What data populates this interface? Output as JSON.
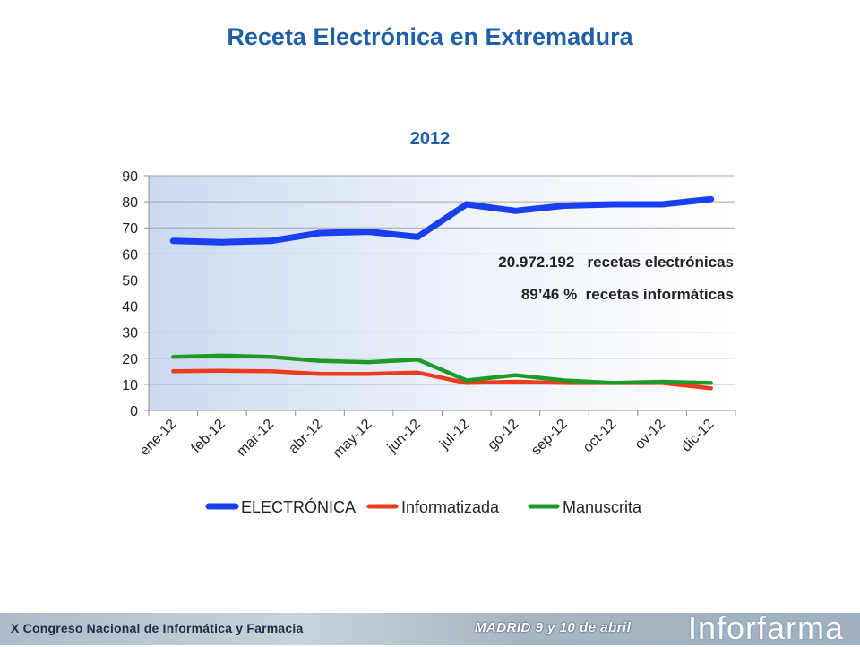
{
  "slide": {
    "title": "Receta Electrónica en Extremadura"
  },
  "annotations": {
    "line1": "20.972.192   recetas electrónicas",
    "line2": "89’46 %  recetas informáticas"
  },
  "footer": {
    "left_text": "X Congreso Nacional de Informática y Farmacia",
    "mid_text": "MADRID 9 y 10 de abril",
    "logo_text": "Inforfarma"
  },
  "chart_data": {
    "type": "line",
    "title": "2012",
    "categories": [
      "ene-12",
      "feb-12",
      "mar-12",
      "abr-12",
      "may-12",
      "jun-12",
      "jul-12",
      "go-12",
      "sep-12",
      "oct-12",
      "ov-12",
      "dic-12"
    ],
    "ylim": [
      0,
      90
    ],
    "yticks": [
      0,
      10,
      20,
      30,
      40,
      50,
      60,
      70,
      80,
      90
    ],
    "grid": true,
    "legend_position": "bottom",
    "series": [
      {
        "name": "ELECTRÓNICA",
        "color": "#1a3ff0",
        "values": [
          65,
          64.5,
          65,
          68,
          68.5,
          66.5,
          79,
          76.5,
          78.5,
          79,
          79,
          81
        ]
      },
      {
        "name": "Informatizada",
        "color": "#ee3b1e",
        "values": [
          15,
          15.2,
          15,
          14,
          14,
          14.5,
          10.5,
          11,
          10.5,
          10.5,
          10.5,
          8.5
        ]
      },
      {
        "name": "Manuscrita",
        "color": "#1e9a26",
        "values": [
          20.5,
          21,
          20.5,
          19,
          18.5,
          19.5,
          11.5,
          13.5,
          11.5,
          10.5,
          11,
          10.5
        ]
      }
    ]
  }
}
